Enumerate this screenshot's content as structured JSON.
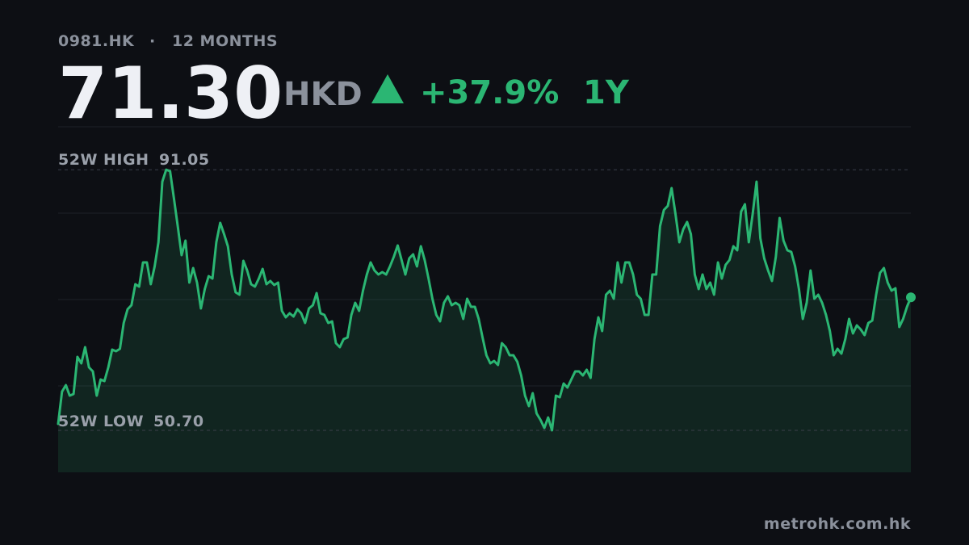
{
  "chart_data": {
    "type": "area",
    "ticker": "0981.HK",
    "separator": "·",
    "period": "12 MONTHS",
    "price": "71.30",
    "currency": "HKD",
    "change": "+37.9%",
    "change_period": "1Y",
    "high_label": "52W HIGH",
    "high": 91.05,
    "low_label": "52W LOW",
    "low": {
      "value": 50.7,
      "label": "50.70"
    },
    "source": "metrohk.com.hk",
    "color": "#2bb673",
    "ylim": [
      44.2,
      97.7
    ],
    "values": [
      51.7,
      56.7,
      57.7,
      56.08,
      56.33,
      62.08,
      61.08,
      63.58,
      60.45,
      59.83,
      56.08,
      58.58,
      58.33,
      60.45,
      63.2,
      62.95,
      63.33,
      67.33,
      69.45,
      70.08,
      73.33,
      72.95,
      76.7,
      76.7,
      73.33,
      76.08,
      79.83,
      89.2,
      91.05,
      90.83,
      86.7,
      82.33,
      77.83,
      80.08,
      73.58,
      75.83,
      73.58,
      69.58,
      72.58,
      74.58,
      74.2,
      79.83,
      82.83,
      81.08,
      79.2,
      74.83,
      72.08,
      71.7,
      76.95,
      75.45,
      73.33,
      72.95,
      74.2,
      75.7,
      73.33,
      73.83,
      73.2,
      73.58,
      69.2,
      68.2,
      68.83,
      68.33,
      69.45,
      68.83,
      67.33,
      69.58,
      70.08,
      71.95,
      68.83,
      68.58,
      67.33,
      67.58,
      64.2,
      63.58,
      64.83,
      65.08,
      68.58,
      70.45,
      69.2,
      72.33,
      74.83,
      76.7,
      75.45,
      74.83,
      75.2,
      74.83,
      76.08,
      77.58,
      79.33,
      77.08,
      74.83,
      77.33,
      77.95,
      76.08,
      79.2,
      77.08,
      74.2,
      71.08,
      68.58,
      67.58,
      70.45,
      71.45,
      70.08,
      70.45,
      70.08,
      67.95,
      71.08,
      69.83,
      69.83,
      67.95,
      65.08,
      62.33,
      61.08,
      61.45,
      60.83,
      64.2,
      63.58,
      62.33,
      62.33,
      61.33,
      59.2,
      56.08,
      54.45,
      56.45,
      53.33,
      52.33,
      51.08,
      52.7,
      50.7,
      56.08,
      55.83,
      57.95,
      57.33,
      58.58,
      59.83,
      59.83,
      59.2,
      60.08,
      58.83,
      64.83,
      68.2,
      66.08,
      71.7,
      72.33,
      71.08,
      76.7,
      73.58,
      76.7,
      76.7,
      74.83,
      71.7,
      71.08,
      68.58,
      68.58,
      74.83,
      74.83,
      82.33,
      84.83,
      85.45,
      88.2,
      84.2,
      79.83,
      81.83,
      82.95,
      81.08,
      74.83,
      72.58,
      74.83,
      72.58,
      73.58,
      71.7,
      76.7,
      74.2,
      76.33,
      77.08,
      79.2,
      78.58,
      84.58,
      85.7,
      79.83,
      84.2,
      89.2,
      80.45,
      77.33,
      75.45,
      73.83,
      77.58,
      83.58,
      80.08,
      78.58,
      78.33,
      76.08,
      72.58,
      67.95,
      70.45,
      75.45,
      71.08,
      71.7,
      70.45,
      68.58,
      66.08,
      62.33,
      63.33,
      62.58,
      64.83,
      67.95,
      65.7,
      66.95,
      66.33,
      65.45,
      67.33,
      67.7,
      71.7,
      75.08,
      75.83,
      73.58,
      72.33,
      72.7,
      66.7,
      67.95,
      69.83,
      71.3
    ]
  }
}
